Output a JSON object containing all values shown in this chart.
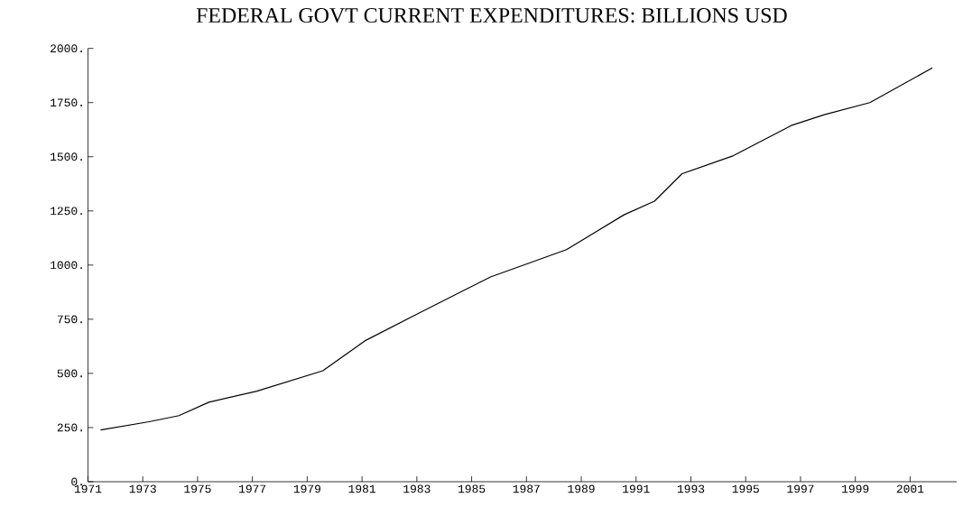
{
  "chart_data": {
    "type": "line",
    "title": "FEDERAL GOVT CURRENT EXPENDITURES: BILLIONS USD",
    "x": [
      1971.46,
      1973.23,
      1974.32,
      1975.41,
      1977.16,
      1979.57,
      1981.1,
      1983.1,
      1985.69,
      1988.46,
      1990.56,
      1991.67,
      1992.67,
      1994.55,
      1996.66,
      1997.87,
      1999.53,
      2001.81
    ],
    "series": [
      {
        "color": "#000000",
        "values": [
          239,
          277,
          305,
          367,
          418,
          512,
          650,
          780,
          945,
          1071,
          1232,
          1295,
          1421,
          1505,
          1644,
          1694,
          1750,
          1910
        ]
      }
    ],
    "xlim": [
      1971,
      2002.7
    ],
    "ylim": [
      0,
      2000
    ],
    "xticks": [
      1971,
      1973,
      1975,
      1977,
      1979,
      1981,
      1983,
      1985,
      1987,
      1989,
      1991,
      1993,
      1995,
      1997,
      1999,
      2001
    ],
    "yticks": [
      {
        "value": 0,
        "label": "0."
      },
      {
        "value": 250,
        "label": "250."
      },
      {
        "value": 500,
        "label": "500."
      },
      {
        "value": 750,
        "label": "750."
      },
      {
        "value": 1000,
        "label": "1000."
      },
      {
        "value": 1250,
        "label": "1250."
      },
      {
        "value": 1500,
        "label": "1500."
      },
      {
        "value": 1750,
        "label": "1750."
      },
      {
        "value": 2000,
        "label": "2000."
      }
    ],
    "grid": false,
    "marker": "none",
    "line_style": "solid"
  }
}
